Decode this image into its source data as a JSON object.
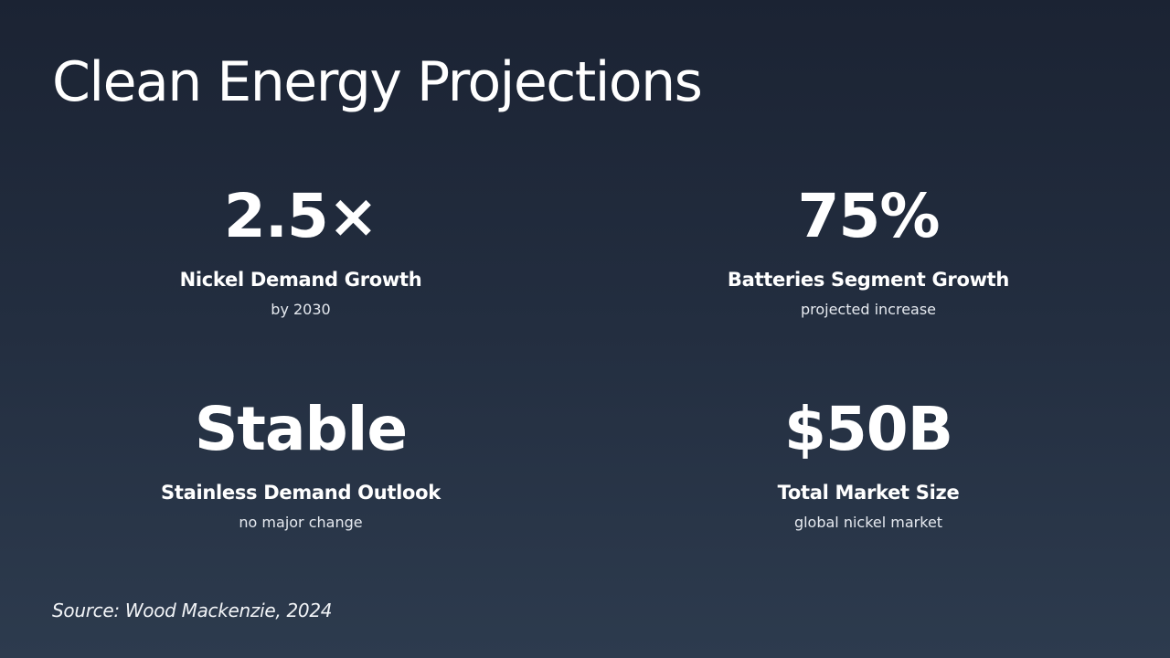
{
  "slide": {
    "title": "Clean Energy Projections",
    "source": "Source: Wood Mackenzie, 2024"
  },
  "stats": [
    {
      "value": "2.5×",
      "label": "Nickel Demand Growth",
      "sub": "by 2030"
    },
    {
      "value": "75%",
      "label": "Batteries Segment Growth",
      "sub": "projected increase"
    },
    {
      "value": "Stable",
      "label": "Stainless Demand Outlook",
      "sub": "no major change"
    },
    {
      "value": "$50B",
      "label": "Total Market Size",
      "sub": "global nickel market"
    }
  ],
  "colors": {
    "background_top": "#1b2333",
    "background_bottom": "#2d3b4e",
    "text": "#ffffff"
  }
}
